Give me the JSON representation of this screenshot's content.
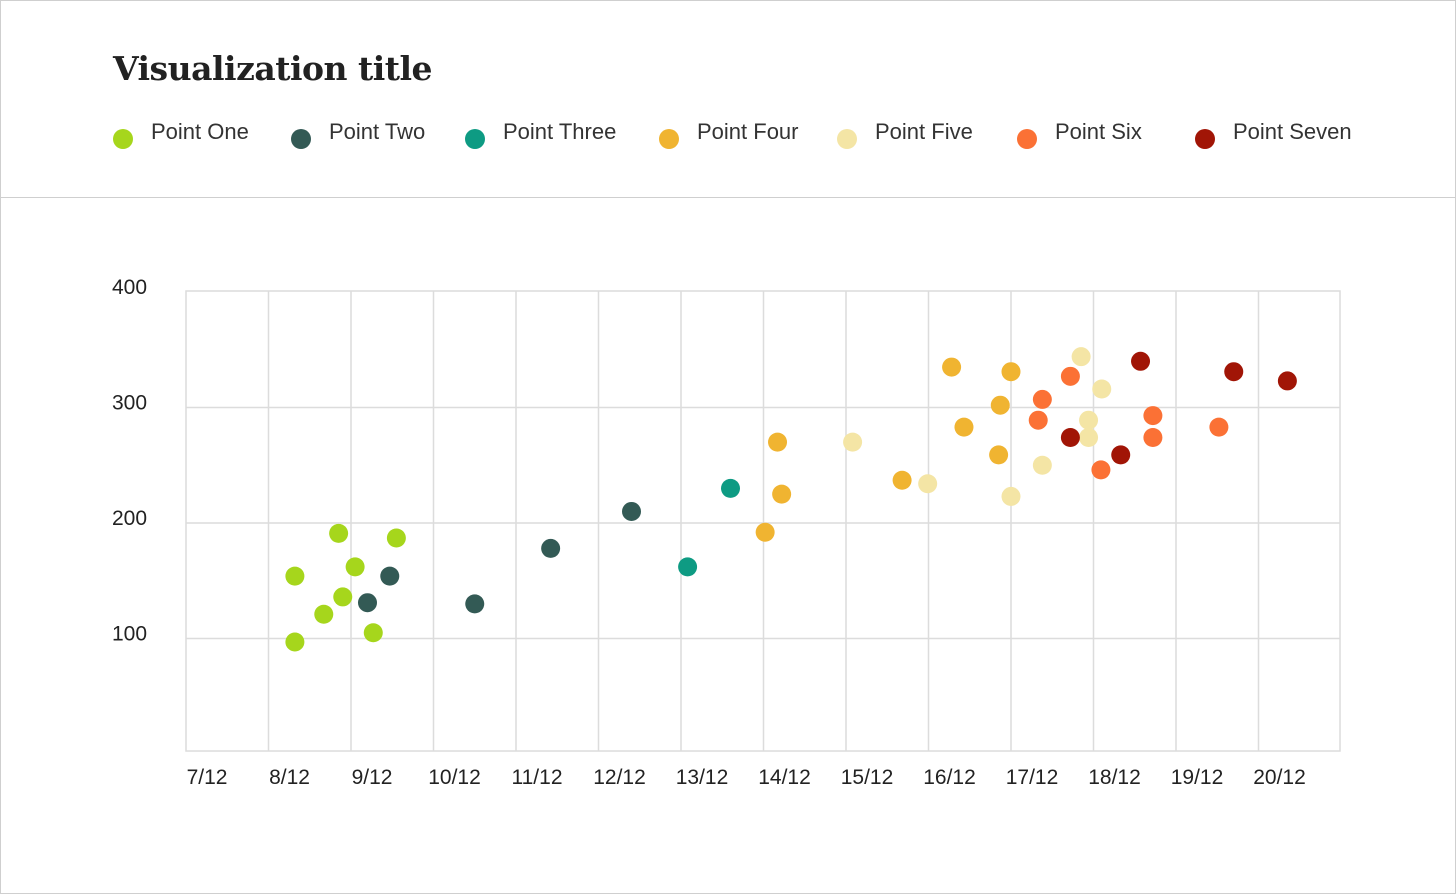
{
  "title": "Visualization title",
  "legend": [
    {
      "name": "Point One",
      "color": "#a6d61c"
    },
    {
      "name": "Point Two",
      "color": "#335a55"
    },
    {
      "name": "Point Three",
      "color": "#0e9b83"
    },
    {
      "name": "Point Four",
      "color": "#f0b431"
    },
    {
      "name": "Point Five",
      "color": "#f4e5a5"
    },
    {
      "name": "Point Six",
      "color": "#fb7135"
    },
    {
      "name": "Point Seven",
      "color": "#a11506"
    }
  ],
  "chart_data": {
    "type": "scatter",
    "title": "Visualization title",
    "xlabel": "",
    "ylabel": "",
    "x_tick_labels": [
      "7/12",
      "8/12",
      "9/12",
      "10/12",
      "11/12",
      "12/12",
      "13/12",
      "14/12",
      "15/12",
      "16/12",
      "17/12",
      "18/12",
      "19/12",
      "20/12"
    ],
    "y_ticks": [
      100,
      200,
      300,
      400
    ],
    "xlim": [
      7,
      21
    ],
    "ylim": [
      0,
      400
    ],
    "grid": true,
    "legend_position": "top",
    "series": [
      {
        "name": "Point One",
        "color": "#a6d61c",
        "points": [
          [
            8.32,
            154
          ],
          [
            8.32,
            97
          ],
          [
            8.67,
            121
          ],
          [
            8.85,
            191
          ],
          [
            8.9,
            136
          ],
          [
            9.05,
            162
          ],
          [
            9.27,
            105
          ],
          [
            9.55,
            187
          ]
        ]
      },
      {
        "name": "Point Two",
        "color": "#335a55",
        "points": [
          [
            9.2,
            131
          ],
          [
            9.47,
            154
          ],
          [
            10.5,
            130
          ],
          [
            11.42,
            178
          ],
          [
            12.4,
            210
          ]
        ]
      },
      {
        "name": "Point Three",
        "color": "#0e9b83",
        "points": [
          [
            13.08,
            162
          ],
          [
            13.6,
            230
          ]
        ]
      },
      {
        "name": "Point Four",
        "color": "#f0b431",
        "points": [
          [
            14.02,
            192
          ],
          [
            14.17,
            270
          ],
          [
            14.22,
            225
          ],
          [
            15.68,
            237
          ],
          [
            16.28,
            335
          ],
          [
            16.43,
            283
          ],
          [
            16.85,
            259
          ],
          [
            16.87,
            302
          ],
          [
            17.0,
            331
          ]
        ]
      },
      {
        "name": "Point Five",
        "color": "#f4e5a5",
        "points": [
          [
            15.08,
            270
          ],
          [
            15.99,
            234
          ],
          [
            17.0,
            223
          ],
          [
            17.38,
            250
          ],
          [
            17.85,
            344
          ],
          [
            17.94,
            289
          ],
          [
            17.94,
            274
          ],
          [
            18.1,
            316
          ]
        ]
      },
      {
        "name": "Point Six",
        "color": "#fb7135",
        "points": [
          [
            17.33,
            289
          ],
          [
            17.38,
            307
          ],
          [
            17.72,
            327
          ],
          [
            18.09,
            246
          ],
          [
            18.72,
            293
          ],
          [
            18.72,
            274
          ],
          [
            19.52,
            283
          ]
        ]
      },
      {
        "name": "Point Seven",
        "color": "#a11506",
        "points": [
          [
            17.72,
            274
          ],
          [
            18.33,
            259
          ],
          [
            18.57,
            340
          ],
          [
            19.7,
            331
          ],
          [
            20.35,
            323
          ]
        ]
      }
    ]
  }
}
